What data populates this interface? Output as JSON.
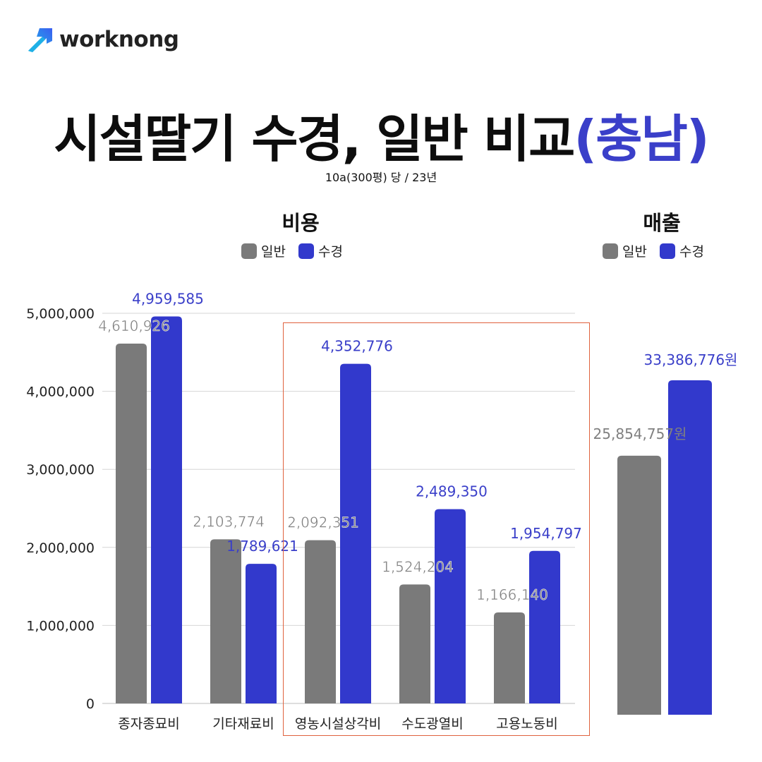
{
  "logo": {
    "text": "worknong"
  },
  "title": {
    "main": "시설딸기 수경, 일반 비교",
    "accent": "(충남)"
  },
  "subtitle": "10a(300평) 당 / 23년",
  "colors": {
    "general": "#7a7a7a",
    "hydro": "#3239cc",
    "highlight_box": "#e0623e",
    "label_general": "#808080",
    "label_hydro": "#3a3fc9"
  },
  "chart_data": [
    {
      "type": "bar",
      "title": "비용",
      "legend": [
        "일반",
        "수경"
      ],
      "categories": [
        "종자종묘비",
        "기타재료비",
        "영농시설상각비",
        "수도광열비",
        "고용노동비"
      ],
      "series": [
        {
          "name": "일반",
          "values": [
            4610926,
            2103774,
            2092351,
            1524204,
            1166140
          ],
          "labels": [
            "4,610,926",
            "2,103,774",
            "2,092,351",
            "1,524,204",
            "1,166,140"
          ]
        },
        {
          "name": "수경",
          "values": [
            4959585,
            1789621,
            4352776,
            2489350,
            1954797
          ],
          "labels": [
            "4,959,585",
            "1,789,621",
            "4,352,776",
            "2,489,350",
            "1,954,797"
          ]
        }
      ],
      "y_ticks": [
        "0",
        "1,000,000",
        "2,000,000",
        "3,000,000",
        "4,000,000",
        "5,000,000"
      ],
      "ylim": [
        0,
        5000000
      ],
      "grid": true,
      "legend_position": "top"
    },
    {
      "type": "bar",
      "title": "매출",
      "legend": [
        "일반",
        "수경"
      ],
      "series": [
        {
          "name": "일반",
          "values": [
            25854757
          ],
          "labels": [
            "25,854,757원"
          ]
        },
        {
          "name": "수경",
          "values": [
            33386776
          ],
          "labels": [
            "33,386,776원"
          ]
        }
      ],
      "grid": false,
      "legend_position": "top"
    }
  ]
}
